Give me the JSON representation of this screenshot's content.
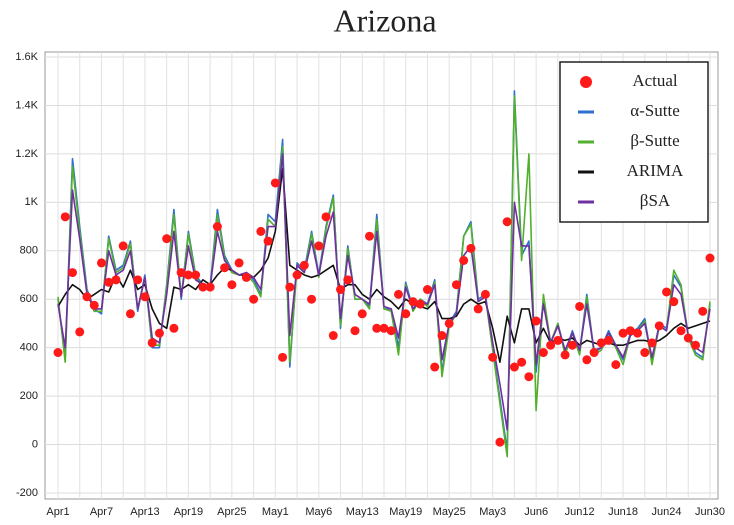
{
  "chart_data": {
    "type": "line",
    "title": "Arizona",
    "categories": [
      "Apr1",
      null,
      null,
      null,
      null,
      null,
      "Apr7",
      null,
      null,
      null,
      null,
      null,
      "Apr13",
      null,
      null,
      null,
      null,
      null,
      "Apr19",
      null,
      null,
      null,
      null,
      null,
      "Apr25",
      null,
      null,
      null,
      null,
      null,
      "May1",
      null,
      null,
      null,
      null,
      null,
      "May6",
      null,
      null,
      null,
      null,
      null,
      "May13",
      null,
      null,
      null,
      null,
      null,
      "May19",
      null,
      null,
      null,
      null,
      null,
      "May25",
      null,
      null,
      null,
      null,
      null,
      "May3",
      null,
      null,
      null,
      null,
      null,
      "Jun6",
      null,
      null,
      null,
      null,
      null,
      "Jun12",
      null,
      null,
      null,
      null,
      null,
      "Jun18",
      null,
      null,
      null,
      null,
      null,
      "Jun24",
      null,
      null,
      null,
      null,
      null,
      "Jun30"
    ],
    "series": [
      {
        "name": "Actual",
        "color": "#ff1a1a",
        "style": "markers",
        "values": [
          380,
          940,
          710,
          465,
          610,
          575,
          750,
          670,
          680,
          820,
          540,
          680,
          610,
          420,
          460,
          850,
          480,
          710,
          700,
          700,
          650,
          650,
          900,
          730,
          660,
          750,
          690,
          600,
          880,
          840,
          1080,
          360,
          650,
          700,
          740,
          600,
          820,
          940,
          450,
          640,
          680,
          470,
          540,
          860,
          480,
          480,
          470,
          620,
          540,
          590,
          580,
          640,
          320,
          450,
          500,
          660,
          760,
          810,
          560,
          620,
          360,
          10,
          920,
          320,
          340,
          280,
          510,
          380,
          410,
          430,
          370,
          410,
          570,
          350,
          380,
          420,
          430,
          330,
          460,
          470,
          460,
          380,
          420,
          490,
          630,
          590,
          470,
          440,
          410,
          550,
          770
        ]
      },
      {
        "name": "α-Sutte",
        "color": "#2e6fd0",
        "style": "line",
        "values": [
          600,
          350,
          1180,
          900,
          640,
          560,
          540,
          860,
          720,
          740,
          840,
          550,
          700,
          400,
          400,
          660,
          970,
          600,
          880,
          700,
          660,
          650,
          970,
          780,
          720,
          700,
          710,
          680,
          620,
          950,
          920,
          1260,
          320,
          750,
          720,
          880,
          700,
          900,
          1030,
          480,
          820,
          600,
          600,
          570,
          950,
          560,
          560,
          400,
          670,
          560,
          600,
          580,
          680,
          300,
          500,
          550,
          860,
          920,
          600,
          620,
          400,
          190,
          -30,
          1460,
          780,
          840,
          300,
          600,
          420,
          500,
          380,
          470,
          380,
          620,
          380,
          400,
          470,
          410,
          350,
          460,
          480,
          520,
          340,
          500,
          480,
          700,
          650,
          450,
          380,
          360,
          580
        ]
      },
      {
        "name": "β-Sutte",
        "color": "#52b02c",
        "style": "line",
        "values": [
          610,
          340,
          1150,
          880,
          630,
          550,
          550,
          850,
          710,
          730,
          830,
          560,
          690,
          410,
          410,
          650,
          950,
          610,
          870,
          690,
          650,
          640,
          950,
          770,
          710,
          700,
          700,
          670,
          610,
          930,
          900,
          1230,
          340,
          740,
          710,
          870,
          690,
          890,
          1020,
          490,
          810,
          600,
          600,
          560,
          930,
          560,
          550,
          370,
          660,
          550,
          600,
          570,
          670,
          280,
          490,
          540,
          860,
          910,
          590,
          610,
          390,
          170,
          -50,
          1440,
          760,
          1200,
          140,
          620,
          420,
          500,
          370,
          460,
          370,
          610,
          370,
          390,
          460,
          400,
          330,
          450,
          470,
          510,
          330,
          490,
          470,
          720,
          660,
          440,
          370,
          350,
          590
        ]
      },
      {
        "name": "ARIMA",
        "color": "#111111",
        "style": "line",
        "values": [
          570,
          620,
          660,
          640,
          600,
          620,
          640,
          630,
          700,
          650,
          720,
          640,
          660,
          560,
          500,
          480,
          650,
          640,
          660,
          640,
          680,
          660,
          700,
          730,
          720,
          700,
          700,
          690,
          720,
          770,
          880,
          1140,
          740,
          720,
          700,
          690,
          700,
          720,
          740,
          640,
          660,
          660,
          620,
          600,
          640,
          610,
          590,
          560,
          600,
          580,
          570,
          560,
          590,
          520,
          520,
          530,
          580,
          600,
          580,
          590,
          480,
          340,
          530,
          420,
          560,
          560,
          420,
          480,
          420,
          440,
          430,
          440,
          410,
          430,
          420,
          410,
          420,
          410,
          410,
          420,
          430,
          430,
          420,
          430,
          450,
          480,
          500,
          480,
          490,
          500,
          510
        ]
      },
      {
        "name": "βSA",
        "color": "#7030a0",
        "style": "line",
        "values": [
          580,
          400,
          1050,
          850,
          620,
          560,
          560,
          800,
          700,
          720,
          800,
          560,
          690,
          440,
          420,
          620,
          880,
          610,
          820,
          680,
          660,
          650,
          880,
          760,
          720,
          700,
          710,
          690,
          640,
          900,
          900,
          1200,
          450,
          740,
          710,
          840,
          700,
          860,
          960,
          520,
          780,
          620,
          600,
          580,
          880,
          570,
          560,
          440,
          650,
          560,
          590,
          580,
          660,
          350,
          500,
          540,
          780,
          820,
          590,
          610,
          420,
          250,
          60,
          1000,
          820,
          820,
          330,
          580,
          420,
          490,
          390,
          460,
          390,
          580,
          390,
          400,
          460,
          410,
          360,
          450,
          470,
          500,
          360,
          490,
          470,
          660,
          620,
          450,
          400,
          380,
          560
        ]
      }
    ],
    "ylim": [
      -200,
      1600
    ],
    "yticks": [
      -200,
      0,
      200,
      400,
      600,
      800,
      {
        "value": 1000,
        "label": "1K"
      },
      {
        "value": 1200,
        "label": "1.2K"
      },
      {
        "value": 1400,
        "label": "1.4K"
      },
      {
        "value": 1600,
        "label": "1.6K"
      }
    ],
    "grid": true,
    "legend": "top-right"
  }
}
